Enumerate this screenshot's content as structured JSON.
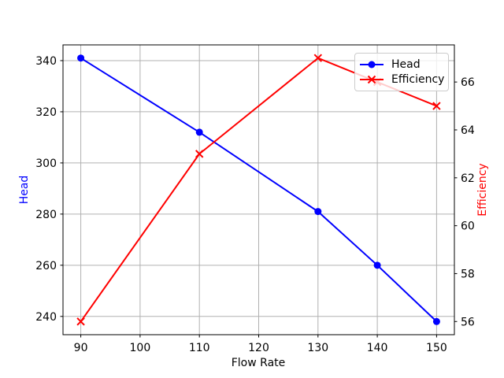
{
  "chart_data": {
    "type": "line",
    "title": "",
    "xlabel": "Flow Rate",
    "ylabel_left": "Head",
    "ylabel_right": "Efficiency",
    "x": [
      90,
      110,
      130,
      140,
      150
    ],
    "series": [
      {
        "name": "Head",
        "axis": "left",
        "color": "#0000ff",
        "marker": "circle",
        "values": [
          341,
          312,
          281,
          260,
          238
        ]
      },
      {
        "name": "Efficiency",
        "axis": "right",
        "color": "#ff0000",
        "marker": "x",
        "values": [
          56,
          63,
          67,
          66,
          65
        ]
      }
    ],
    "x_ticks": [
      90,
      100,
      110,
      120,
      130,
      140,
      150
    ],
    "y_ticks_left": [
      240,
      260,
      280,
      300,
      320,
      340
    ],
    "y_ticks_right": [
      56,
      58,
      60,
      62,
      64,
      66
    ],
    "xlim": [
      87,
      153
    ],
    "ylim_left": [
      232.85,
      346.15
    ],
    "ylim_right": [
      55.45,
      67.55
    ],
    "grid": true,
    "legend": {
      "position": "upper right",
      "entries": [
        "Head",
        "Efficiency"
      ]
    },
    "colors": {
      "head_series": "#0000ff",
      "efficiency_series": "#ff0000",
      "left_axis_label": "#0000ff",
      "right_axis_label": "#ff0000",
      "grid": "#b0b0b0",
      "spine": "#000000",
      "tick_labels": "#000000",
      "background": "#ffffff",
      "legend_border": "#cccccc"
    }
  }
}
